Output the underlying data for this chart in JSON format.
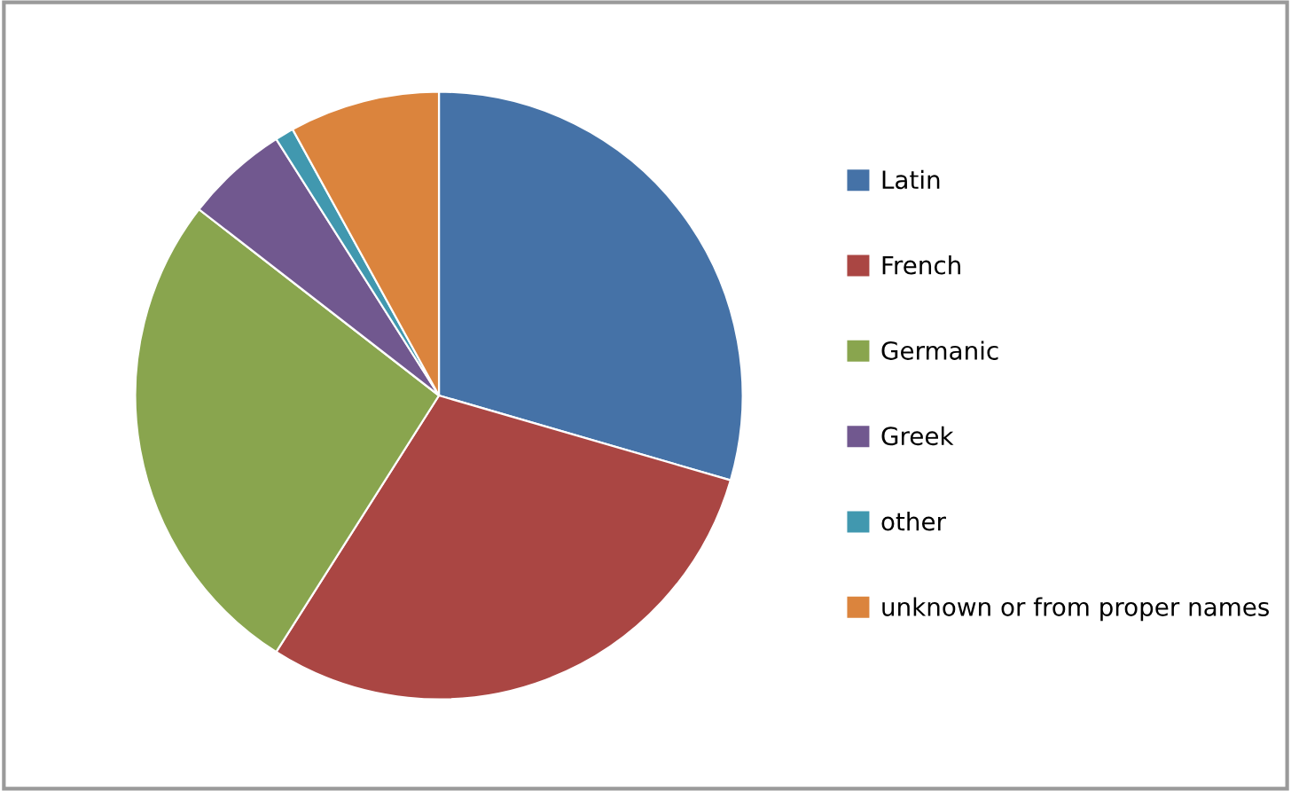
{
  "chart_data": {
    "type": "pie",
    "categories": [
      "Latin",
      "French",
      "Germanic",
      "Greek",
      "other",
      "unknown or from proper names"
    ],
    "values": [
      29.5,
      29.5,
      26.5,
      5.5,
      1,
      8
    ],
    "colors": [
      "#4572a7",
      "#aa4643",
      "#89a54e",
      "#71588f",
      "#4198af",
      "#db843d"
    ],
    "legend": "right"
  }
}
